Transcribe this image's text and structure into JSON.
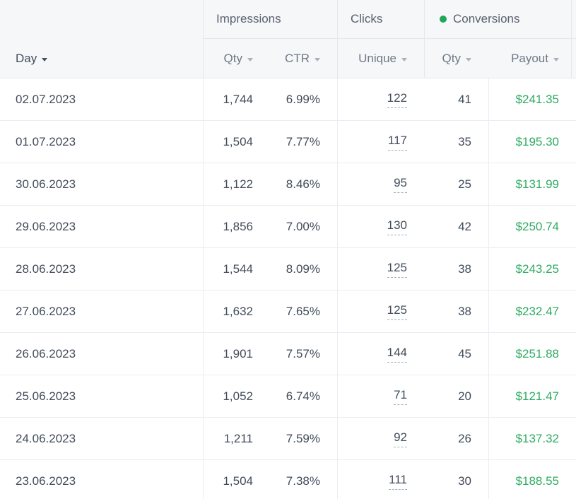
{
  "header": {
    "groups": [
      {
        "label": "Impressions"
      },
      {
        "label": "Clicks"
      },
      {
        "label": "Conversions",
        "has_dot": true
      }
    ],
    "columns": {
      "day": "Day",
      "imp_qty": "Qty",
      "ctr": "CTR",
      "unique": "Unique",
      "conv_qty": "Qty",
      "payout": "Payout"
    },
    "sorted_by": "Day"
  },
  "rows": [
    {
      "day": "02.07.2023",
      "imp_qty": "1,744",
      "ctr": "6.99%",
      "unique": "122",
      "conv_qty": "41",
      "payout": "$241.35"
    },
    {
      "day": "01.07.2023",
      "imp_qty": "1,504",
      "ctr": "7.77%",
      "unique": "117",
      "conv_qty": "35",
      "payout": "$195.30"
    },
    {
      "day": "30.06.2023",
      "imp_qty": "1,122",
      "ctr": "8.46%",
      "unique": "95",
      "conv_qty": "25",
      "payout": "$131.99"
    },
    {
      "day": "29.06.2023",
      "imp_qty": "1,856",
      "ctr": "7.00%",
      "unique": "130",
      "conv_qty": "42",
      "payout": "$250.74"
    },
    {
      "day": "28.06.2023",
      "imp_qty": "1,544",
      "ctr": "8.09%",
      "unique": "125",
      "conv_qty": "38",
      "payout": "$243.25"
    },
    {
      "day": "27.06.2023",
      "imp_qty": "1,632",
      "ctr": "7.65%",
      "unique": "125",
      "conv_qty": "38",
      "payout": "$232.47"
    },
    {
      "day": "26.06.2023",
      "imp_qty": "1,901",
      "ctr": "7.57%",
      "unique": "144",
      "conv_qty": "45",
      "payout": "$251.88"
    },
    {
      "day": "25.06.2023",
      "imp_qty": "1,052",
      "ctr": "6.74%",
      "unique": "71",
      "conv_qty": "20",
      "payout": "$121.47"
    },
    {
      "day": "24.06.2023",
      "imp_qty": "1,211",
      "ctr": "7.59%",
      "unique": "92",
      "conv_qty": "26",
      "payout": "$137.32"
    },
    {
      "day": "23.06.2023",
      "imp_qty": "1,504",
      "ctr": "7.38%",
      "unique": "111",
      "conv_qty": "30",
      "payout": "$188.55"
    }
  ],
  "colors": {
    "header_bg": "#f6f7f9",
    "payout_green": "#2dab61",
    "conversions_dot": "#1ea659",
    "data_text": "#424c5b",
    "row_border": "#eaedf1"
  }
}
